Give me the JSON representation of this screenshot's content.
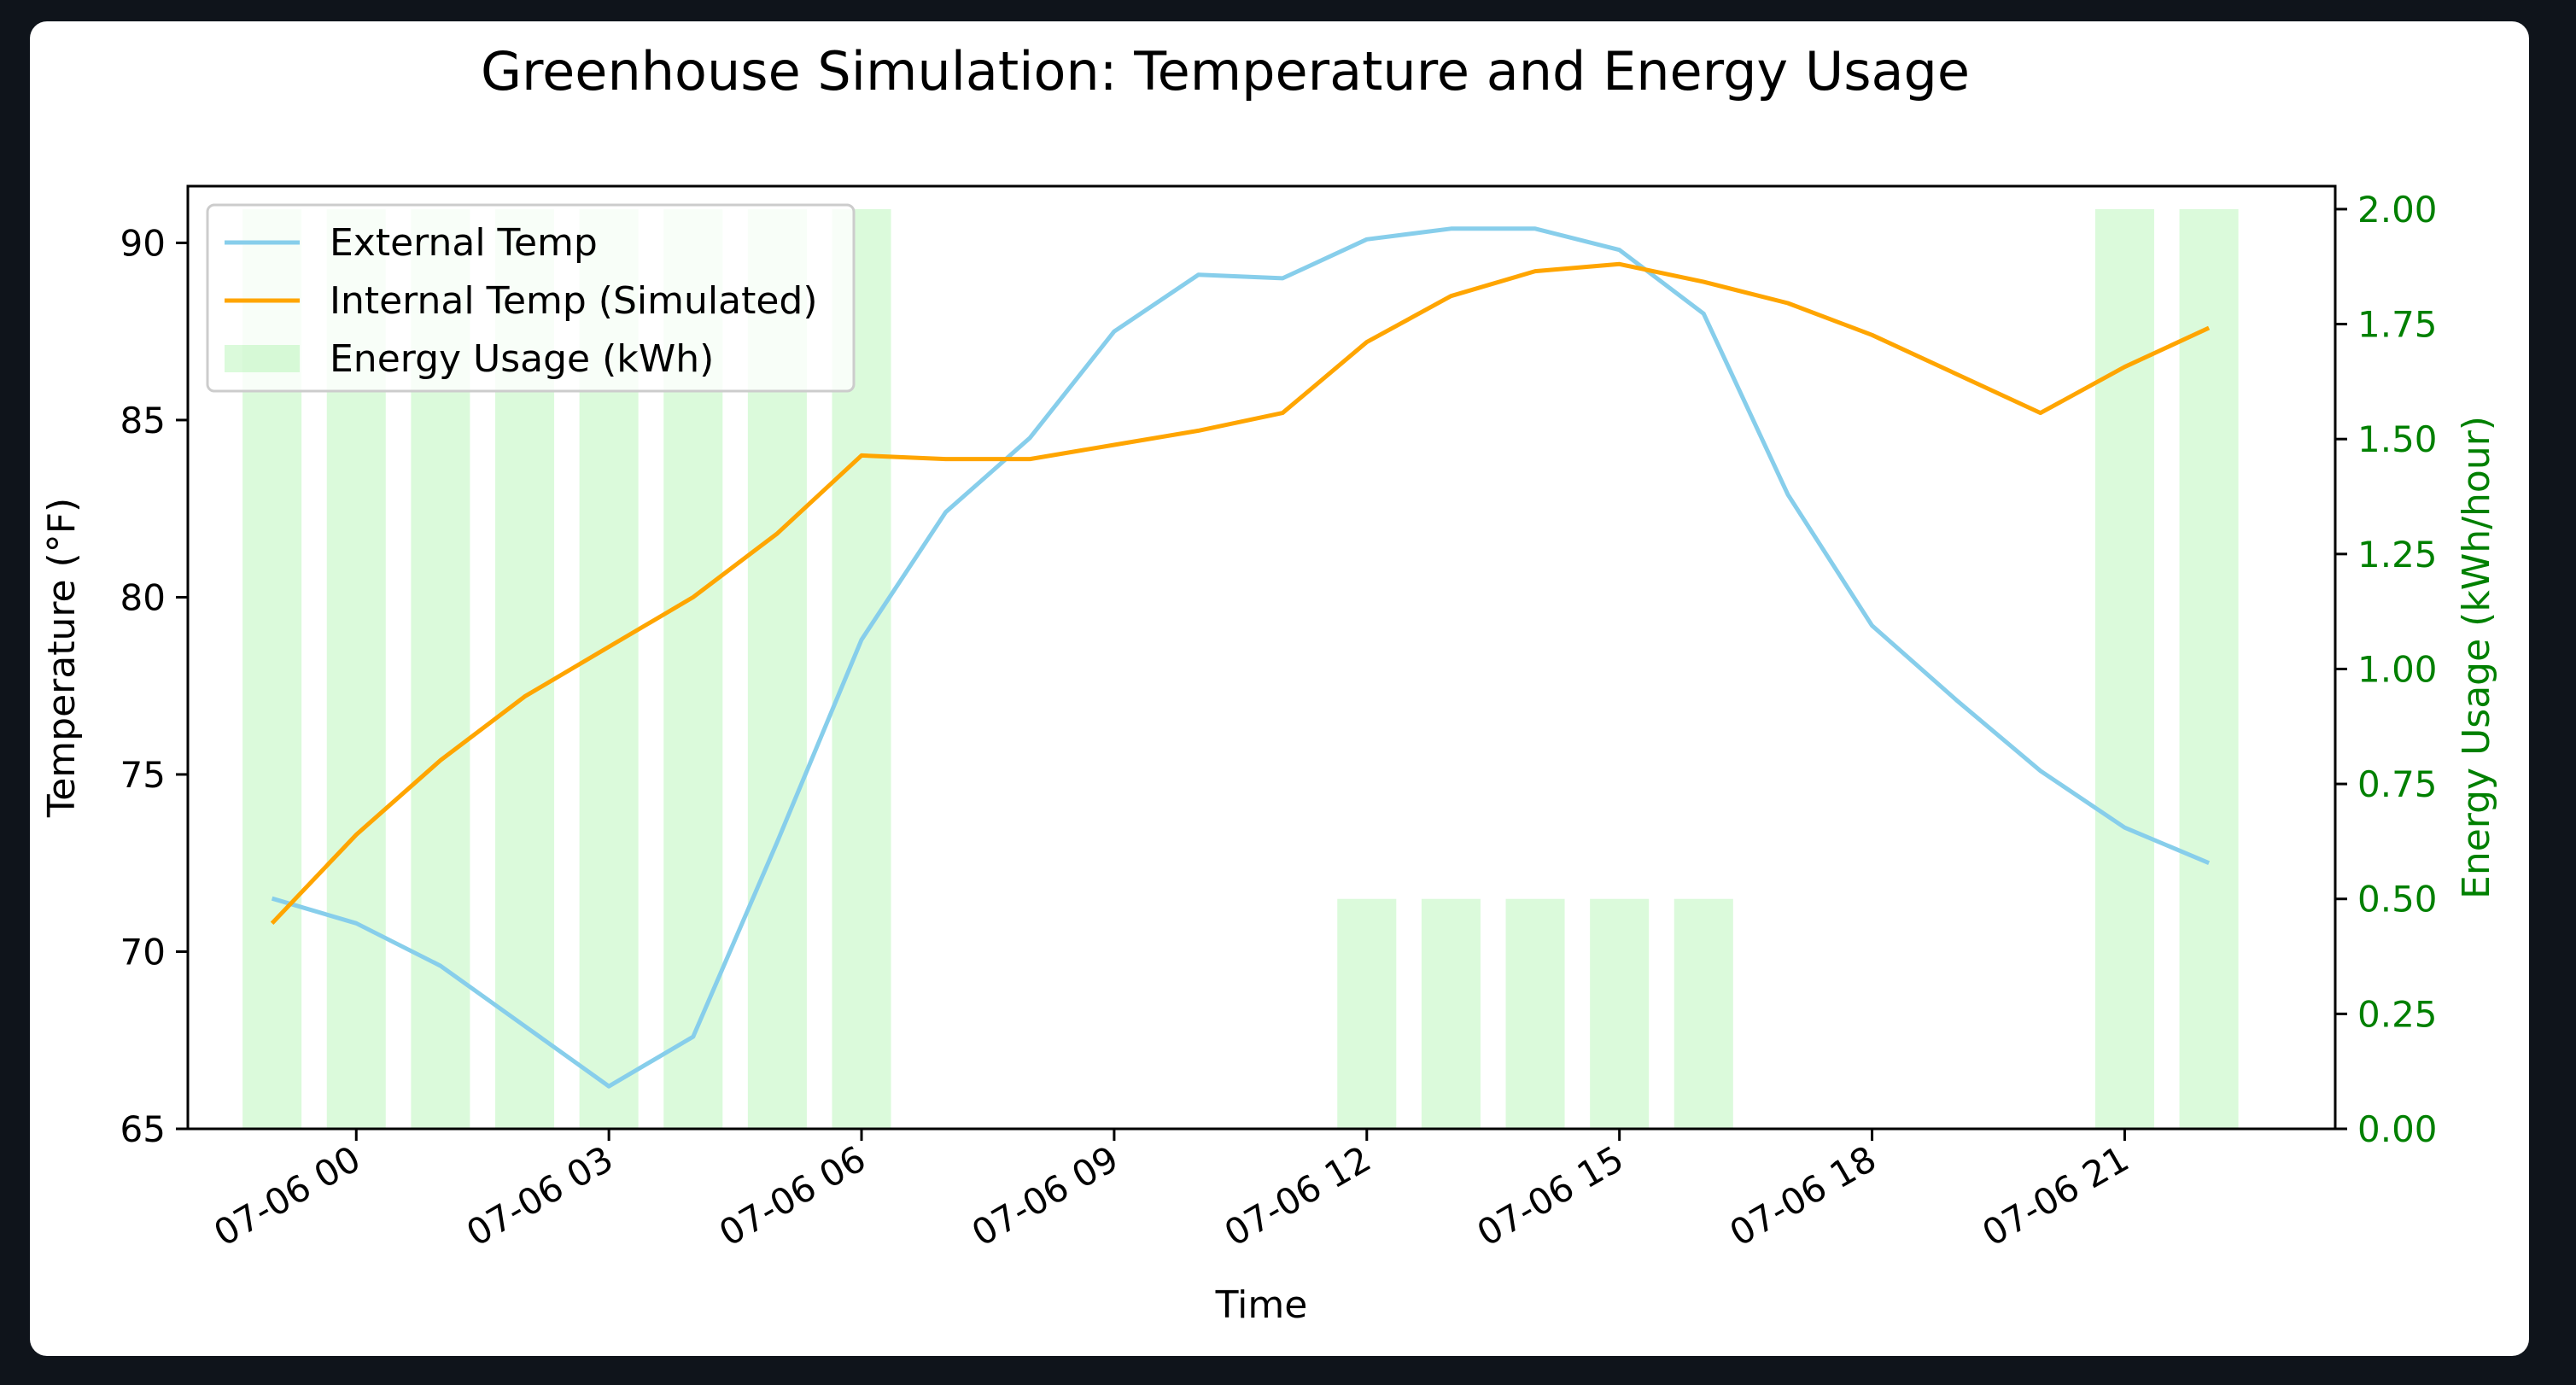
{
  "chart_data": {
    "type": "line",
    "title": "Greenhouse Simulation: Temperature and Energy Usage",
    "xlabel": "Time",
    "ylabel": "Temperature (°F)",
    "y2label": "Energy Usage (kWh/hour)",
    "x": [
      "07-05 23:00",
      "07-06 00:00",
      "07-06 01:00",
      "07-06 02:00",
      "07-06 03:00",
      "07-06 04:00",
      "07-06 05:00",
      "07-06 06:00",
      "07-06 07:00",
      "07-06 08:00",
      "07-06 09:00",
      "07-06 10:00",
      "07-06 11:00",
      "07-06 12:00",
      "07-06 13:00",
      "07-06 14:00",
      "07-06 15:00",
      "07-06 16:00",
      "07-06 17:00",
      "07-06 18:00",
      "07-06 19:00",
      "07-06 20:00",
      "07-06 21:00",
      "07-06 22:00"
    ],
    "xlim": [
      "07-05 22:00",
      "07-06 23:30"
    ],
    "xticks": [
      "07-06 00",
      "07-06 03",
      "07-06 06",
      "07-06 09",
      "07-06 12",
      "07-06 15",
      "07-06 18",
      "07-06 21"
    ],
    "ylim": [
      65,
      91.6
    ],
    "yticks": [
      65,
      70,
      75,
      80,
      85,
      90
    ],
    "y2lim": [
      0,
      2.05
    ],
    "y2ticks": [
      "0.00",
      "0.25",
      "0.50",
      "0.75",
      "1.00",
      "1.25",
      "1.50",
      "1.75",
      "2.00"
    ],
    "series": [
      {
        "name": "External Temp",
        "axis": "left",
        "kind": "line",
        "color": "#87ceeb",
        "values": [
          71.5,
          70.8,
          69.6,
          67.9,
          66.2,
          67.6,
          73.1,
          78.8,
          82.4,
          84.5,
          87.5,
          89.1,
          89.0,
          90.1,
          90.4,
          90.4,
          89.8,
          88.0,
          82.9,
          79.2,
          77.1,
          75.1,
          73.5,
          72.5
        ]
      },
      {
        "name": "Internal Temp (Simulated)",
        "axis": "left",
        "kind": "line",
        "color": "#ffa500",
        "values": [
          70.8,
          73.3,
          75.4,
          77.2,
          78.6,
          80.0,
          81.8,
          84.0,
          83.9,
          83.9,
          84.3,
          84.7,
          85.2,
          87.2,
          88.5,
          89.2,
          89.4,
          88.9,
          88.3,
          87.4,
          86.3,
          85.2,
          86.5,
          87.6
        ]
      },
      {
        "name": "Energy Usage (kWh)",
        "axis": "right",
        "kind": "bar",
        "color": "#90ee90",
        "values": [
          2,
          2,
          2,
          2,
          2,
          2,
          2,
          2,
          0,
          0,
          0,
          0,
          0,
          0.5,
          0.5,
          0.5,
          0.5,
          0.5,
          0,
          0,
          0,
          0,
          2,
          2
        ]
      }
    ],
    "legend": {
      "position": "top-left",
      "entries": [
        "External Temp",
        "Internal Temp (Simulated)",
        "Energy Usage (kWh)"
      ]
    },
    "grid": false
  }
}
